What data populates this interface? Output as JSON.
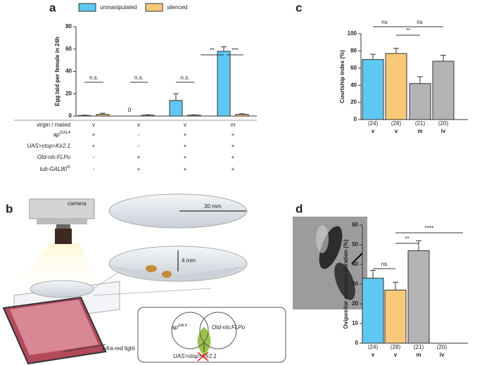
{
  "panel_letters": [
    "a",
    "b",
    "c",
    "d"
  ],
  "chart_data": [
    {
      "type": "bar",
      "ylabel": "Egg laid per female in 24h",
      "series": [
        {
          "name": "unmanipulated",
          "color": "#5ec8f2",
          "values": [
            0.5,
            0,
            14,
            58
          ],
          "errors": [
            0.3,
            0,
            6,
            4
          ]
        },
        {
          "name": "silenced",
          "color": "#f7c978",
          "values": [
            1.5,
            0.8,
            0.8,
            1.5
          ],
          "errors": [
            1,
            0.4,
            0.3,
            0.5
          ]
        }
      ],
      "ylim": [
        0,
        80
      ],
      "yticks": [
        0,
        20,
        40,
        60,
        80
      ],
      "annotations": [
        "n.s.",
        "n.s.",
        "n.s.",
        "**",
        "***"
      ]
    },
    {
      "type": "bar",
      "ylabel": "Courtship index (%)",
      "categories": [
        "v",
        "v",
        "m",
        "iv"
      ],
      "n_labels": [
        "(24)",
        "(28)",
        "(21)",
        "(20)"
      ],
      "values": [
        70,
        77,
        42,
        68
      ],
      "errors": [
        6,
        6,
        8,
        7
      ],
      "colors": [
        "#5ec8f2",
        "#f7c978",
        "#b3b3b3",
        "#b3b3b3"
      ],
      "ylim": [
        0,
        100
      ],
      "yticks": [
        0,
        20,
        40,
        60,
        80,
        100
      ],
      "annotations": [
        "ns",
        "ns",
        "**"
      ]
    },
    {
      "type": "bar",
      "ylabel": "Ovipositor extrusion duration (%)",
      "categories": [
        "v",
        "v",
        "m",
        "iv"
      ],
      "n_labels": [
        "(24)",
        "(28)",
        "(21)",
        "(20)"
      ],
      "values": [
        33,
        27,
        47,
        0
      ],
      "errors": [
        4,
        4,
        5,
        0
      ],
      "colors": [
        "#5ec8f2",
        "#f7c978",
        "#b3b3b3",
        "#b3b3b3"
      ],
      "ylim": [
        0,
        60
      ],
      "yticks": [
        0,
        10,
        20,
        30,
        40,
        50,
        60
      ],
      "annotations": [
        "ns",
        "**",
        "****"
      ]
    }
  ],
  "condition_table": {
    "row_labels": [
      {
        "text": "virgin / mated"
      },
      {
        "text": "ap",
        "sup": "GAL4"
      },
      {
        "text": "UAS>stop>Kir2.1"
      },
      {
        "text": "Otd-nls:FLPo"
      },
      {
        "text": "tub-GAL80",
        "sup": "ts"
      }
    ],
    "rows": [
      [
        "v",
        "v",
        "v",
        "m"
      ],
      [
        "+",
        "-",
        "+",
        "+"
      ],
      [
        "+",
        "-",
        "+",
        "+"
      ],
      [
        "-",
        "+",
        "+",
        "+"
      ],
      [
        "-",
        "+",
        "+",
        "+"
      ]
    ]
  },
  "diagram": {
    "camera": "camera",
    "width": "30 mm",
    "height": "4 mm",
    "light": "infra-red light",
    "venn_left": {
      "text": "ap",
      "sup": "GAL4"
    },
    "venn_right": "Otd-nls:FLPo",
    "construct": "UAS>stop>Kir2.1"
  }
}
